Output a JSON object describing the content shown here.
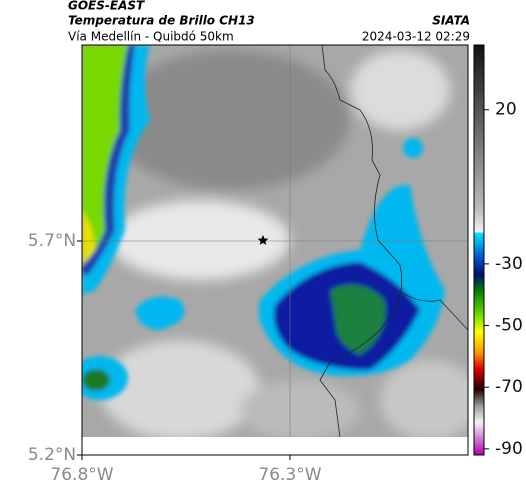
{
  "header": {
    "title": "GOES-EAST",
    "subtitle": "Temperatura de Brillo CH13",
    "route": "Vía Medellín - Quibdó 50km",
    "source": "SIATA",
    "timestamp": "2024-03-12 02:29"
  },
  "map": {
    "xlim": [
      -76.8,
      -75.872
    ],
    "ylim": [
      5.2,
      6.158
    ],
    "xticks": [
      {
        "value": -76.8,
        "label": "76.8°W"
      },
      {
        "value": -76.3,
        "label": "76.3°W"
      }
    ],
    "yticks": [
      {
        "value": 5.7,
        "label": "5.7°N"
      },
      {
        "value": 5.2,
        "label": "5.2°N"
      }
    ]
  },
  "colorbar": {
    "clim": [
      -92,
      41
    ],
    "ticks": [
      20,
      -30,
      -50,
      -70,
      -90
    ]
  }
}
